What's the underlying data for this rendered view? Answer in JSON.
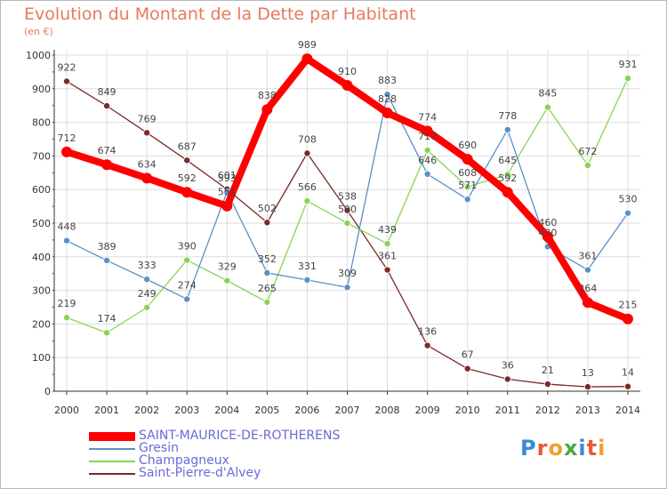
{
  "title": "Evolution du Montant de la Dette par Habitant",
  "unit": "(en €)",
  "logo": "Proxiti",
  "colors": {
    "title": "#e87a5a",
    "grid": "#dddddd",
    "axis": "#333333",
    "legend_text": "#6a6ad8"
  },
  "chart_data": {
    "type": "line",
    "categories": [
      "2000",
      "2001",
      "2002",
      "2003",
      "2004",
      "2005",
      "2006",
      "2007",
      "2008",
      "2009",
      "2010",
      "2011",
      "2012",
      "2013",
      "2014"
    ],
    "ylim": [
      0,
      1000
    ],
    "yticks": [
      0,
      100,
      200,
      300,
      400,
      500,
      600,
      700,
      800,
      900,
      1000
    ],
    "grid": true,
    "legend": "bottom-left",
    "series": [
      {
        "name": "Saint-Pierre-d'Alvey",
        "color": "#7a2a2a",
        "values": [
          922,
          849,
          769,
          687,
          601,
          502,
          708,
          538,
          361,
          136,
          67,
          36,
          21,
          13,
          14
        ]
      },
      {
        "name": "Champagneux",
        "color": "#88d455",
        "values": [
          219,
          174,
          249,
          390,
          329,
          265,
          566,
          500,
          439,
          717,
          608,
          645,
          845,
          672,
          931
        ]
      },
      {
        "name": "Gresin",
        "color": "#5a90c8",
        "values": [
          448,
          389,
          333,
          274,
          593,
          352,
          331,
          309,
          883,
          646,
          571,
          778,
          430,
          361,
          530
        ]
      },
      {
        "name": "SAINT-MAURICE-DE-ROTHERENS",
        "color": "#ff0000",
        "values": [
          712,
          674,
          634,
          592,
          551,
          838,
          989,
          910,
          828,
          774,
          690,
          592,
          460,
          264,
          215
        ]
      }
    ]
  }
}
